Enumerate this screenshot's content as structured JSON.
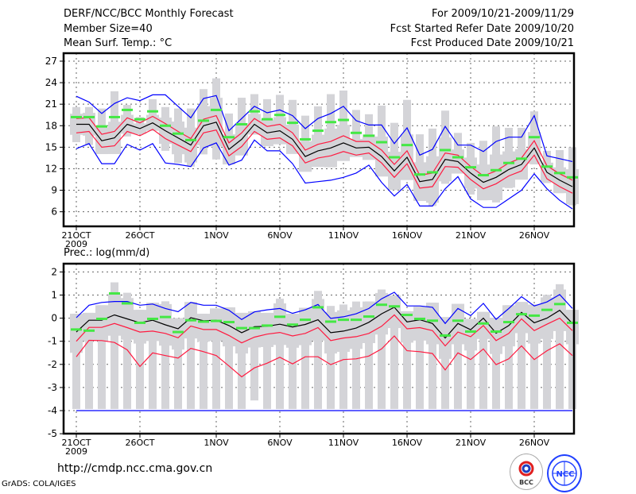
{
  "header": {
    "title": "DERF/NCC/BCC Monthly Forecast",
    "member_size": "Member Size=40",
    "range": "For 2009/10/21-2009/11/29",
    "started": "Fcst Started Refer Date 2009/10/20",
    "produced": "Fcst Produced Date 2009/10/21"
  },
  "footer": {
    "url": "http://cmdp.ncc.cma.gov.cn",
    "grads": "GrADS: COLA/IGES",
    "logo_bcc": "BCC",
    "logo_ncc": "NCC"
  },
  "colors": {
    "mean": "#000000",
    "sd": "#ff1a40",
    "extreme": "#0000ff",
    "obs": "#44e844",
    "members": "#d4d4d8"
  },
  "chart_data": [
    {
      "type": "line",
      "title": "Mean Surf. Temp.: °C",
      "x_start": "2009-10-21",
      "days": 40,
      "xtick_labels": [
        "21OCT",
        "26OCT",
        "1NOV",
        "6NOV",
        "11NOV",
        "16NOV",
        "21NOV",
        "26NOV"
      ],
      "xtick_days": [
        0,
        5,
        11,
        16,
        21,
        26,
        31,
        36
      ],
      "year_label": "2009",
      "ylim": [
        3.9,
        28
      ],
      "yticks": [
        6,
        9,
        12,
        15,
        18,
        21,
        24,
        27
      ],
      "grid": true,
      "series": [
        {
          "name": "ensemble mean",
          "color": "mean",
          "values": [
            18.2,
            18.2,
            15.9,
            16.3,
            18.2,
            17.6,
            18.4,
            17.3,
            16.3,
            15.3,
            18.0,
            18.5,
            14.7,
            16.1,
            18.2,
            17.0,
            17.3,
            16.1,
            13.7,
            14.5,
            14.9,
            15.6,
            14.9,
            15.0,
            13.7,
            11.7,
            13.6,
            10.2,
            10.5,
            13.3,
            13.0,
            11.4,
            10.1,
            10.8,
            11.9,
            12.6,
            14.9,
            11.5,
            10.4,
            9.5
          ]
        },
        {
          "name": "mean + sd",
          "color": "sd",
          "values": [
            19.0,
            19.1,
            16.8,
            17.2,
            19.1,
            18.4,
            19.3,
            18.3,
            17.2,
            16.2,
            18.9,
            19.4,
            15.6,
            17.0,
            19.0,
            17.9,
            18.2,
            17.0,
            14.6,
            15.4,
            15.8,
            16.6,
            15.8,
            15.8,
            14.6,
            12.6,
            14.5,
            11.1,
            11.4,
            14.2,
            13.9,
            12.3,
            11.0,
            11.7,
            12.8,
            13.5,
            15.9,
            12.4,
            11.3,
            10.4
          ]
        },
        {
          "name": "mean - sd",
          "color": "sd",
          "values": [
            17.0,
            17.2,
            15.0,
            15.2,
            17.2,
            16.6,
            17.5,
            16.2,
            15.3,
            14.4,
            17.0,
            17.4,
            13.8,
            15.1,
            17.2,
            16.1,
            16.3,
            15.2,
            12.8,
            13.5,
            13.8,
            14.4,
            13.9,
            14.2,
            12.8,
            10.8,
            12.7,
            9.3,
            9.5,
            12.3,
            12.2,
            10.5,
            9.2,
            9.9,
            11.0,
            11.7,
            13.9,
            10.6,
            9.5,
            8.6
          ]
        },
        {
          "name": "maximum",
          "color": "extreme",
          "values": [
            22.1,
            21.3,
            19.7,
            21.1,
            21.9,
            21.5,
            22.3,
            22.3,
            20.7,
            19.1,
            21.8,
            22.2,
            17.3,
            19.0,
            20.7,
            19.8,
            20.2,
            19.4,
            17.6,
            19.0,
            19.7,
            20.7,
            18.7,
            18.1,
            18.1,
            15.5,
            17.7,
            13.9,
            14.7,
            17.9,
            15.3,
            15.3,
            14.4,
            15.8,
            16.4,
            16.4,
            19.4,
            13.8,
            13.4,
            13.0
          ]
        },
        {
          "name": "minimum",
          "color": "extreme",
          "values": [
            14.8,
            15.5,
            12.7,
            12.7,
            15.4,
            14.6,
            15.5,
            12.8,
            12.6,
            12.3,
            14.9,
            15.6,
            12.5,
            13.2,
            16.0,
            14.5,
            14.5,
            12.7,
            10.0,
            10.2,
            10.4,
            10.8,
            11.4,
            12.5,
            10.1,
            8.2,
            9.8,
            6.8,
            6.8,
            9.2,
            10.9,
            7.8,
            6.6,
            6.6,
            7.8,
            9.0,
            11.3,
            9.2,
            7.6,
            6.4
          ]
        }
      ],
      "observed": [
        19.2,
        19.2,
        17.9,
        19.2,
        20.2,
        18.9,
        20.0,
        18.0,
        16.9,
        16.0,
        18.7,
        20.2,
        16.4,
        18.2,
        20.0,
        18.9,
        19.5,
        18.4,
        16.1,
        17.3,
        18.5,
        18.8,
        17.0,
        16.6,
        15.7,
        13.6,
        15.3,
        11.2,
        11.5,
        14.6,
        13.6,
        12.2,
        11.1,
        11.8,
        12.8,
        13.4,
        16.4,
        12.3,
        11.4,
        10.8
      ],
      "member_range_high": [
        20.6,
        20.6,
        20.4,
        22.8,
        20.9,
        19.2,
        21.7,
        20.6,
        20.4,
        20.4,
        23.1,
        24.6,
        19.7,
        21.9,
        22.4,
        21.7,
        22.3,
        21.6,
        19.4,
        20.7,
        22.4,
        22.9,
        20.2,
        19.6,
        20.8,
        18.4,
        21.6,
        16.8,
        17.6,
        20.1,
        17.0,
        15.6,
        15.9,
        17.9,
        17.7,
        17.7,
        20.0,
        14.5,
        14.6,
        15.0
      ],
      "member_range_low": [
        15.7,
        15.3,
        14.2,
        15.3,
        16.5,
        16.8,
        18.0,
        14.5,
        12.8,
        12.3,
        14.0,
        13.3,
        12.7,
        14.4,
        17.6,
        15.5,
        16.0,
        14.8,
        12.3,
        13.2,
        13.4,
        14.5,
        16.0,
        13.7,
        11.5,
        9.5,
        11.0,
        7.8,
        6.8,
        9.9,
        11.4,
        8.4,
        7.6,
        7.3,
        9.3,
        10.6,
        12.6,
        10.0,
        8.6,
        6.9
      ]
    },
    {
      "type": "line",
      "title": "Prec.: log(mm/d)",
      "x_start": "2009-10-21",
      "days": 40,
      "xtick_labels": [
        "21OCT",
        "26OCT",
        "1NOV",
        "6NOV",
        "11NOV",
        "16NOV",
        "21NOV",
        "26NOV"
      ],
      "xtick_days": [
        0,
        5,
        11,
        16,
        21,
        26,
        31,
        36
      ],
      "year_label": "2009",
      "ylim": [
        -5,
        2.3
      ],
      "yticks": [
        -5,
        -4,
        -3,
        -2,
        -1,
        0,
        1,
        2
      ],
      "grid": true,
      "series": [
        {
          "name": "ensemble mean",
          "color": "mean",
          "values": [
            -0.6,
            -0.09,
            -0.09,
            0.14,
            -0.03,
            -0.2,
            -0.09,
            -0.29,
            -0.46,
            0.02,
            -0.11,
            -0.09,
            -0.32,
            -0.63,
            -0.37,
            -0.35,
            -0.26,
            -0.38,
            -0.27,
            -0.07,
            -0.63,
            -0.56,
            -0.43,
            -0.18,
            0.19,
            0.47,
            -0.16,
            -0.07,
            -0.23,
            -0.86,
            -0.23,
            -0.5,
            0.0,
            -0.65,
            -0.32,
            0.25,
            -0.2,
            0.0,
            0.34,
            -0.23
          ]
        },
        {
          "name": "mean + sd",
          "color": "extreme",
          "values": [
            0.02,
            0.56,
            0.68,
            0.72,
            0.72,
            0.56,
            0.61,
            0.42,
            0.28,
            0.68,
            0.56,
            0.56,
            0.34,
            -0.06,
            0.27,
            0.36,
            0.42,
            0.21,
            0.36,
            0.59,
            -0.01,
            0.06,
            0.19,
            0.42,
            0.84,
            1.12,
            0.53,
            0.53,
            0.47,
            -0.23,
            0.42,
            0.11,
            0.64,
            -0.05,
            0.42,
            0.93,
            0.53,
            0.7,
            1.02,
            0.42
          ]
        },
        {
          "name": "upper red",
          "color": "sd",
          "values": [
            -1.0,
            -0.4,
            -0.4,
            -0.23,
            -0.41,
            -0.6,
            -0.56,
            -0.66,
            -0.85,
            -0.34,
            -0.49,
            -0.49,
            -0.75,
            -1.07,
            -0.82,
            -0.69,
            -0.62,
            -0.77,
            -0.66,
            -0.41,
            -0.97,
            -0.86,
            -0.8,
            -0.66,
            -0.35,
            0.14,
            -0.46,
            -0.41,
            -0.54,
            -1.2,
            -0.6,
            -0.8,
            -0.32,
            -0.97,
            -0.66,
            -0.03,
            -0.54,
            -0.26,
            0.0,
            -0.54
          ]
        },
        {
          "name": "lower red",
          "color": "sd",
          "values": [
            -1.67,
            -0.96,
            -0.97,
            -1.05,
            -1.37,
            -2.09,
            -1.5,
            -1.62,
            -1.73,
            -1.31,
            -1.45,
            -1.62,
            -2.07,
            -2.54,
            -2.15,
            -1.95,
            -1.69,
            -1.98,
            -1.67,
            -1.67,
            -2.01,
            -1.79,
            -1.76,
            -1.64,
            -1.33,
            -0.77,
            -1.41,
            -1.45,
            -1.53,
            -2.24,
            -1.5,
            -1.79,
            -1.33,
            -2.01,
            -1.76,
            -1.2,
            -1.79,
            -1.41,
            -1.11,
            -1.62
          ]
        },
        {
          "name": "minimum",
          "color": "extreme",
          "values": [
            -4,
            -4,
            -4,
            -4,
            -4,
            -4,
            -4,
            -4,
            -4,
            -4,
            -4,
            -4,
            -4,
            -4,
            -4,
            -4,
            -4,
            -4,
            -4,
            -4,
            -4,
            -4,
            -4,
            -4,
            -4,
            -4,
            -4,
            -4,
            -4,
            -4,
            -4,
            -4,
            -4,
            -4,
            -4,
            -4,
            -4,
            -4,
            -4,
            -4
          ]
        }
      ],
      "observed": [
        -0.49,
        -0.54,
        -0.03,
        1.07,
        0.64,
        -0.2,
        -0.03,
        0.05,
        -0.6,
        -0.09,
        -0.15,
        -0.12,
        -0.17,
        -0.43,
        -0.43,
        -0.32,
        0.06,
        -0.28,
        -0.07,
        0.47,
        -0.15,
        -0.07,
        -0.07,
        0.07,
        0.58,
        0.51,
        0.14,
        -0.03,
        -0.11,
        -0.75,
        -0.11,
        -0.58,
        -0.23,
        -0.58,
        -0.17,
        0.17,
        0.11,
        0.36,
        0.61,
        -0.2
      ],
      "member_range_high": [
        0.19,
        0.23,
        0.56,
        1.55,
        1.1,
        0.36,
        0.67,
        0.73,
        0.0,
        0.7,
        0.19,
        0.42,
        0.47,
        0.23,
        0.3,
        0.23,
        0.84,
        0.19,
        0.45,
        1.18,
        0.53,
        0.59,
        0.72,
        0.72,
        1.24,
        0.98,
        0.3,
        0.5,
        0.67,
        0.05,
        0.62,
        -0.03,
        0.27,
        0.02,
        0.56,
        0.7,
        0.59,
        1.01,
        1.47,
        0.36
      ],
      "member_range_low": [
        -3.93,
        -3.93,
        -3.93,
        -3.93,
        -3.93,
        -3.93,
        -3.93,
        -3.93,
        -3.93,
        -3.93,
        -3.93,
        -3.93,
        -3.93,
        -3.93,
        -3.56,
        -3.93,
        -3.93,
        -3.93,
        -3.93,
        -3.93,
        -3.93,
        -3.93,
        -3.93,
        -3.93,
        -3.93,
        -3.93,
        -3.93,
        -3.93,
        -3.93,
        -3.93,
        -3.93,
        -3.93,
        -3.93,
        -3.93,
        -3.93,
        -3.93,
        -3.93,
        -3.93,
        -3.93,
        -3.93
      ]
    }
  ]
}
